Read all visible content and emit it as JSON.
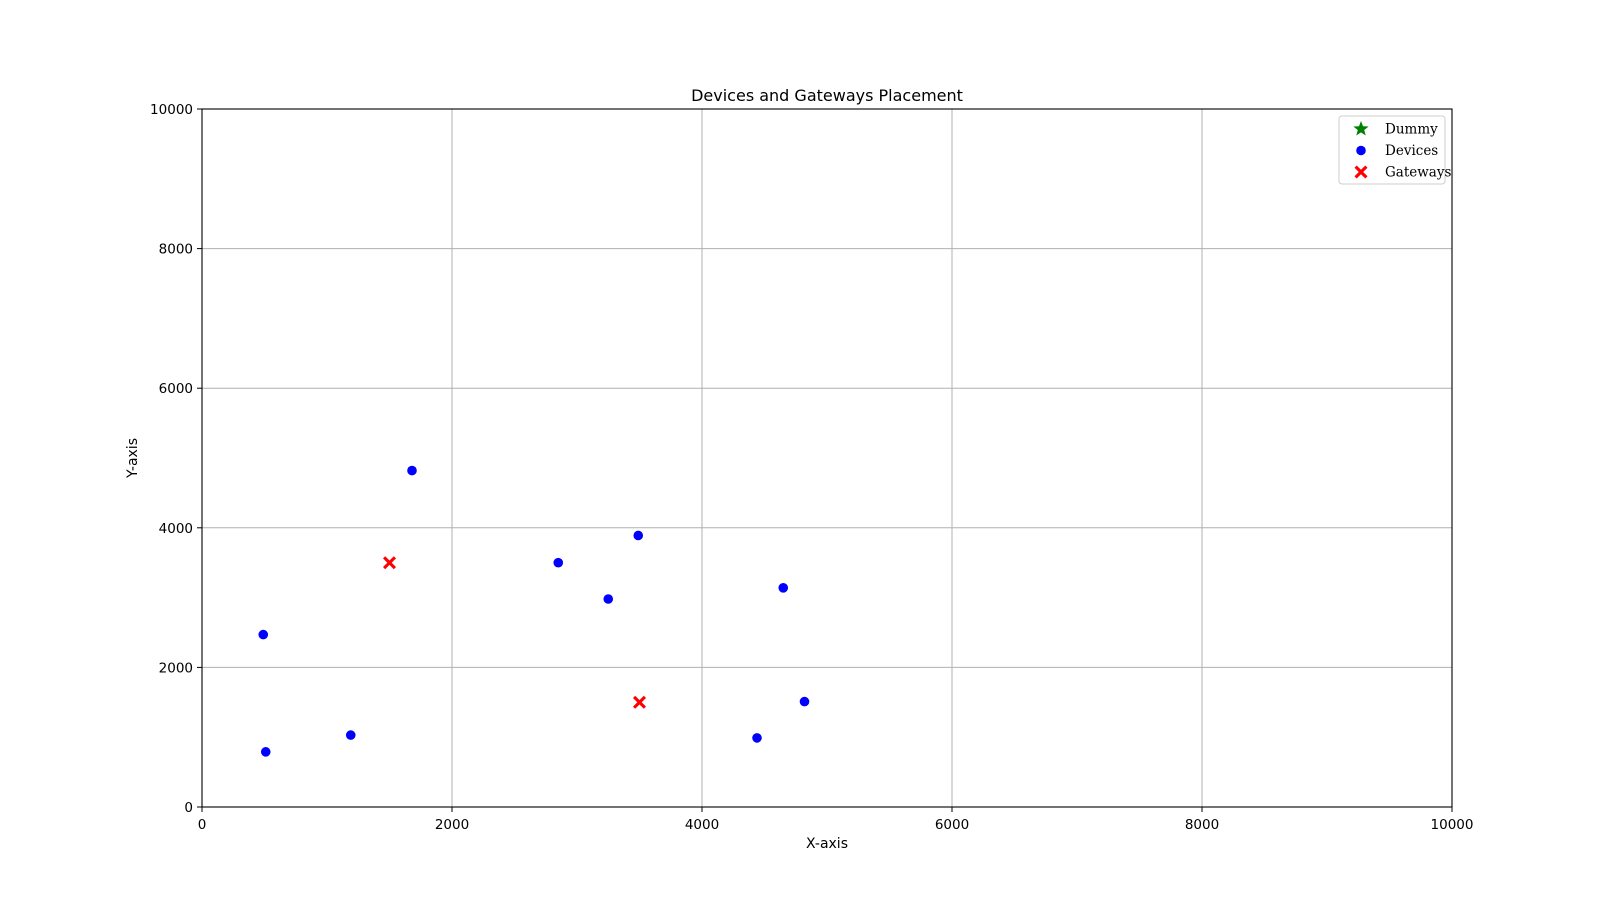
{
  "chart_data": {
    "type": "scatter",
    "title": "Devices and Gateways Placement",
    "xlabel": "X-axis",
    "ylabel": "Y-axis",
    "xlim": [
      0,
      10000
    ],
    "ylim": [
      0,
      10000
    ],
    "xticks": [
      0,
      2000,
      4000,
      6000,
      8000,
      10000
    ],
    "yticks": [
      0,
      2000,
      4000,
      6000,
      8000,
      10000
    ],
    "grid": true,
    "legend_position": "top-right",
    "series": [
      {
        "name": "Dummy",
        "marker": "star",
        "color": "#008000",
        "points": []
      },
      {
        "name": "Devices",
        "marker": "circle",
        "color": "#0000ff",
        "points": [
          {
            "x": 1680,
            "y": 4820
          },
          {
            "x": 2850,
            "y": 3500
          },
          {
            "x": 3490,
            "y": 3890
          },
          {
            "x": 3250,
            "y": 2980
          },
          {
            "x": 4650,
            "y": 3140
          },
          {
            "x": 490,
            "y": 2470
          },
          {
            "x": 510,
            "y": 790
          },
          {
            "x": 1190,
            "y": 1030
          },
          {
            "x": 4440,
            "y": 990
          },
          {
            "x": 4820,
            "y": 1510
          }
        ]
      },
      {
        "name": "Gateways",
        "marker": "x",
        "color": "#ff0000",
        "points": [
          {
            "x": 1500,
            "y": 3500
          },
          {
            "x": 3500,
            "y": 1500
          }
        ]
      }
    ]
  }
}
